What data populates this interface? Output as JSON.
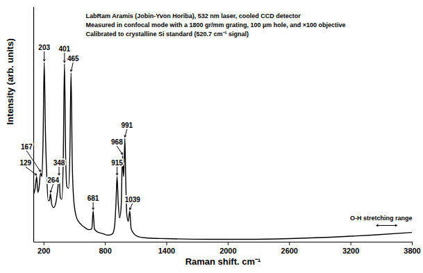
{
  "chart_data": {
    "type": "line",
    "annotations": [
      "LabRam Aramis (Jobin-Yvon Horiba), 532 nm laser, cooled CCD detector",
      "Measured in confocal mode with a 1800 gr/mm grating, 100 µm hole, and ×100 objective",
      "Calibrated to crystalline Si standard (520.7 cm⁻¹ signal)"
    ],
    "xlabel": "Raman shift. cm⁻¹",
    "ylabel": "Intensity (arb. units)",
    "color": "#000000",
    "x": [
      100,
      115,
      129,
      140,
      152,
      167,
      180,
      192,
      203,
      214,
      228,
      242,
      254,
      264,
      276,
      295,
      318,
      334,
      348,
      360,
      375,
      389,
      401,
      413,
      425,
      440,
      454,
      465,
      477,
      492,
      520,
      560,
      600,
      640,
      668,
      681,
      694,
      720,
      780,
      830,
      870,
      890,
      904,
      915,
      926,
      940,
      955,
      968,
      978,
      985,
      991,
      999,
      1010,
      1025,
      1039,
      1052,
      1080,
      1120,
      1200,
      1400,
      1800,
      2200,
      2600,
      3000,
      3400,
      3800
    ],
    "values": [
      70,
      78,
      95,
      72,
      78,
      100,
      95,
      150,
      260,
      165,
      95,
      60,
      60,
      70,
      55,
      50,
      58,
      75,
      95,
      65,
      62,
      120,
      258,
      120,
      80,
      78,
      130,
      245,
      115,
      60,
      35,
      26,
      21,
      18,
      19,
      45,
      19,
      15,
      12,
      10,
      12,
      22,
      55,
      95,
      58,
      35,
      52,
      125,
      95,
      118,
      150,
      95,
      40,
      30,
      45,
      20,
      12,
      8,
      6,
      5,
      4,
      4,
      5,
      7,
      10,
      14
    ],
    "xlim": [
      100,
      3800
    ],
    "xticks": [
      200,
      800,
      1400,
      2000,
      2600,
      3200,
      3800
    ],
    "ylim": [
      0,
      340
    ],
    "tick_labels": "x",
    "peak_labels": [
      129,
      167,
      203,
      264,
      348,
      401,
      465,
      681,
      915,
      968,
      991,
      1039
    ],
    "band": {
      "label": "O-H stretching range",
      "x": [
        3450,
        3650
      ]
    }
  }
}
